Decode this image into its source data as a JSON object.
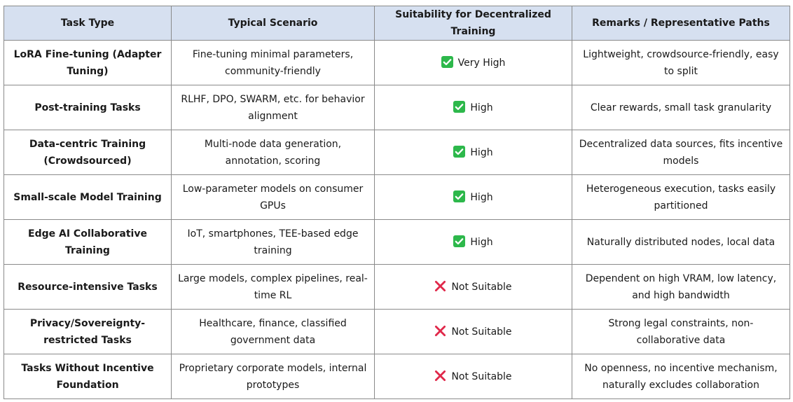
{
  "header": {
    "task_type": "Task Type",
    "typical_scenario": "Typical Scenario",
    "suitability": "Suitability for Decentralized Training",
    "remarks": "Remarks / Representative Paths"
  },
  "colors": {
    "header_bg": "#d6e0f0",
    "check_green": "#2db84b",
    "cross_red": "#e0284a",
    "border": "#8a8a8a"
  },
  "rows": [
    {
      "task_type": "LoRA Fine-tuning (Adapter Tuning)",
      "scenario": "Fine-tuning minimal parameters, community-friendly",
      "suitability_icon": "check-icon",
      "suitability": "Very High",
      "remarks": "Lightweight, crowdsource-friendly, easy to split"
    },
    {
      "task_type": "Post-training Tasks",
      "scenario": "RLHF, DPO, SWARM, etc. for behavior alignment",
      "suitability_icon": "check-icon",
      "suitability": "High",
      "remarks": "Clear rewards, small task granularity"
    },
    {
      "task_type": "Data-centric Training (Crowdsourced)",
      "scenario": "Multi-node data generation, annotation, scoring",
      "suitability_icon": "check-icon",
      "suitability": "High",
      "remarks": "Decentralized data sources, fits incentive models"
    },
    {
      "task_type": "Small-scale Model Training",
      "scenario": "Low-parameter models on consumer GPUs",
      "suitability_icon": "check-icon",
      "suitability": "High",
      "remarks": "Heterogeneous execution, tasks easily partitioned"
    },
    {
      "task_type": "Edge AI Collaborative Training",
      "scenario": "IoT, smartphones, TEE-based edge training",
      "suitability_icon": "check-icon",
      "suitability": "High",
      "remarks": "Naturally distributed nodes, local data"
    },
    {
      "task_type": "Resource-intensive Tasks",
      "scenario": "Large models, complex pipelines, real-time RL",
      "suitability_icon": "cross-icon",
      "suitability": "Not Suitable",
      "remarks": "Dependent on high VRAM, low latency, and high bandwidth"
    },
    {
      "task_type": "Privacy/Sovereignty-restricted Tasks",
      "scenario": "Healthcare, finance, classified government data",
      "suitability_icon": "cross-icon",
      "suitability": "Not Suitable",
      "remarks": "Strong legal constraints, non-collaborative data"
    },
    {
      "task_type": "Tasks Without Incentive Foundation",
      "scenario": "Proprietary corporate models, internal prototypes",
      "suitability_icon": "cross-icon",
      "suitability": "Not Suitable",
      "remarks": "No openness, no incentive mechanism, naturally excludes collaboration"
    }
  ]
}
